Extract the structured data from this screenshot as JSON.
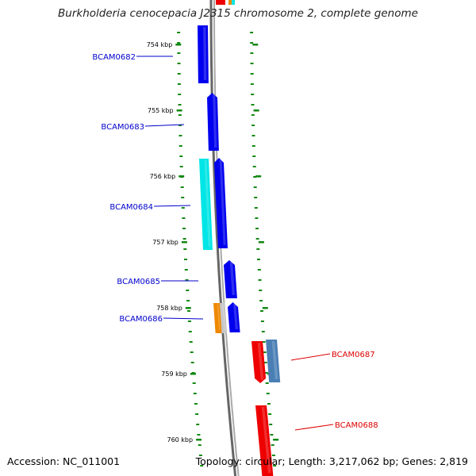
{
  "title": "Burkholderia cenocepacia J2315 chromosome 2, complete genome",
  "accession": "Accession: NC_011001",
  "summary": "Topology: circular; Length: 3,217,062 bp; Genes: 2,819",
  "kbp_ticks": [
    "754 kbp",
    "755 kbp",
    "756 kbp",
    "757 kbp",
    "758 kbp",
    "759 kbp",
    "760 kbp"
  ],
  "gene_labels": [
    {
      "name": "BCAM0682",
      "strand": "minus"
    },
    {
      "name": "BCAM0683",
      "strand": "minus"
    },
    {
      "name": "BCAM0684",
      "strand": "minus"
    },
    {
      "name": "BCAM0685",
      "strand": "minus"
    },
    {
      "name": "BCAM0686",
      "strand": "minus"
    },
    {
      "name": "BCAM0687",
      "strand": "plus"
    },
    {
      "name": "BCAM0688",
      "strand": "plus"
    }
  ],
  "colors": {
    "minus_label": "#0000cc",
    "plus_label": "#dd0000",
    "minus_gene": "#0000ee",
    "plus_gene": "#ee0000",
    "cyan_gene": "#00e5e5",
    "orange_gene": "#ee8800",
    "steel_gene": "#4a7fb5",
    "backbone": "#888888",
    "tick_marks": "#118811"
  }
}
